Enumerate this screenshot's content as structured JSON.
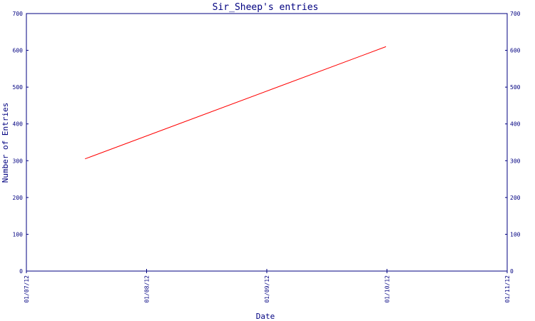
{
  "chart_data": {
    "type": "line",
    "title": "Sir_Sheep's entries",
    "xlabel": "Date",
    "ylabel": "Number of Entries",
    "x_ticks": [
      "01/07/12",
      "01/08/12",
      "01/09/12",
      "01/10/12",
      "01/11/12"
    ],
    "y_ticks": [
      0,
      100,
      200,
      300,
      400,
      500,
      600,
      700
    ],
    "ylim": [
      0,
      700
    ],
    "xlim": [
      "2012-07-01",
      "2012-11-01"
    ],
    "series": [
      {
        "color": "#ff0000",
        "points": [
          {
            "x": "2012-07-16",
            "y": 305
          },
          {
            "x": "2012-10-01",
            "y": 610
          }
        ]
      }
    ],
    "grid": false,
    "colors": {
      "axis": "#000080",
      "text": "#000080",
      "line": "#ff0000"
    }
  }
}
